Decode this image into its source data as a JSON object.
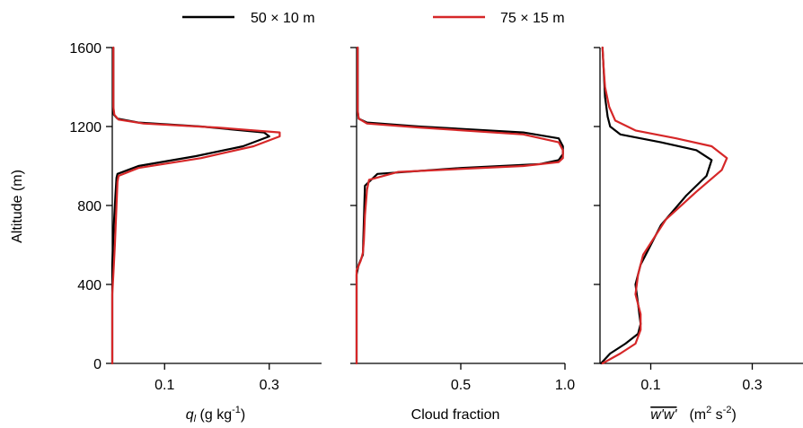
{
  "legend": {
    "position": "top-center",
    "entries": [
      {
        "label": "50 × 10 m",
        "color": "#000000"
      },
      {
        "label": "75 × 15 m",
        "color": "#d62728"
      }
    ]
  },
  "shared_y": {
    "label": "Altitude (m)",
    "ylim": [
      0,
      1600
    ],
    "ticks": [
      0,
      400,
      800,
      1200,
      1600
    ],
    "tick_labels": [
      "0",
      "400",
      "800",
      "1200",
      "1600"
    ]
  },
  "chart_data": [
    {
      "type": "line",
      "xlabel_var": "q",
      "xlabel_sub": "l",
      "xlabel_units": " (g kg",
      "xlabel_sup": "-1",
      "xlabel_close": ")",
      "xlim": [
        0,
        0.4
      ],
      "xticks": [
        0.1,
        0.3
      ],
      "xtick_labels": [
        "0.1",
        "0.3"
      ],
      "grid": false,
      "series": [
        {
          "name": "50 × 10 m",
          "color": "#000000",
          "x": [
            0,
            0,
            0,
            0.003,
            0.006,
            0.008,
            0.01,
            0.05,
            0.16,
            0.25,
            0.3,
            0.29,
            0.17,
            0.05,
            0.01,
            0.003,
            0.002,
            0.002
          ],
          "y": [
            0,
            400,
            500,
            700,
            850,
            940,
            960,
            1000,
            1050,
            1100,
            1150,
            1170,
            1200,
            1220,
            1240,
            1260,
            1300,
            1600
          ]
        },
        {
          "name": "75 × 15 m",
          "color": "#d62728",
          "x": [
            0,
            0,
            0.002,
            0.005,
            0.008,
            0.01,
            0.012,
            0.05,
            0.17,
            0.27,
            0.32,
            0.32,
            0.2,
            0.06,
            0.012,
            0.004,
            0.002,
            0.002
          ],
          "y": [
            0,
            350,
            450,
            600,
            800,
            920,
            950,
            990,
            1040,
            1100,
            1150,
            1170,
            1195,
            1215,
            1235,
            1260,
            1300,
            1600
          ]
        }
      ]
    },
    {
      "type": "line",
      "xlabel": "Cloud fraction",
      "xlim": [
        0,
        1.0
      ],
      "xticks": [
        0.5,
        1.0
      ],
      "xtick_labels": [
        "0.5",
        "1.0"
      ],
      "grid": false,
      "series": [
        {
          "name": "50 × 10 m",
          "color": "#000000",
          "x": [
            0,
            0,
            0.01,
            0.03,
            0.04,
            0.1,
            0.5,
            0.88,
            0.97,
            0.99,
            0.99,
            0.97,
            0.8,
            0.3,
            0.05,
            0.01,
            0.005,
            0.005
          ],
          "y": [
            0,
            450,
            500,
            550,
            900,
            960,
            990,
            1010,
            1030,
            1060,
            1100,
            1140,
            1170,
            1200,
            1220,
            1240,
            1280,
            1600
          ]
        },
        {
          "name": "75 × 15 m",
          "color": "#d62728",
          "x": [
            0,
            0,
            0.02,
            0.03,
            0.035,
            0.04,
            0.05,
            0.06,
            0.2,
            0.8,
            0.97,
            0.99,
            0.99,
            0.97,
            0.8,
            0.3,
            0.05,
            0.01,
            0.005,
            0.005
          ],
          "y": [
            0,
            470,
            520,
            560,
            620,
            750,
            880,
            930,
            970,
            1000,
            1020,
            1040,
            1080,
            1120,
            1160,
            1195,
            1215,
            1240,
            1280,
            1600
          ]
        }
      ]
    },
    {
      "type": "line",
      "xlabel_overline": "w'w'",
      "xlabel_units": "(m",
      "xlabel_sup1": "2",
      "xlabel_mid": " s",
      "xlabel_sup2": "-2",
      "xlabel_close": ")",
      "xlim": [
        0,
        0.4
      ],
      "xticks": [
        0.1,
        0.3
      ],
      "xtick_labels": [
        "0.1",
        "0.3"
      ],
      "grid": false,
      "series": [
        {
          "name": "50 × 10 m",
          "color": "#000000",
          "x": [
            0.002,
            0.02,
            0.05,
            0.075,
            0.08,
            0.075,
            0.07,
            0.08,
            0.12,
            0.17,
            0.21,
            0.22,
            0.19,
            0.12,
            0.04,
            0.02,
            0.015,
            0.01,
            0.008,
            0.005
          ],
          "y": [
            0,
            50,
            100,
            150,
            200,
            300,
            400,
            500,
            700,
            850,
            950,
            1030,
            1080,
            1120,
            1160,
            1200,
            1250,
            1350,
            1450,
            1600
          ]
        },
        {
          "name": "75 × 15 m",
          "color": "#d62728",
          "x": [
            0.005,
            0.04,
            0.07,
            0.08,
            0.08,
            0.07,
            0.075,
            0.085,
            0.13,
            0.19,
            0.24,
            0.25,
            0.22,
            0.15,
            0.07,
            0.03,
            0.018,
            0.01,
            0.007,
            0.005
          ],
          "y": [
            0,
            50,
            100,
            170,
            250,
            350,
            450,
            550,
            730,
            870,
            980,
            1040,
            1100,
            1140,
            1180,
            1230,
            1300,
            1400,
            1500,
            1600
          ]
        }
      ]
    }
  ]
}
